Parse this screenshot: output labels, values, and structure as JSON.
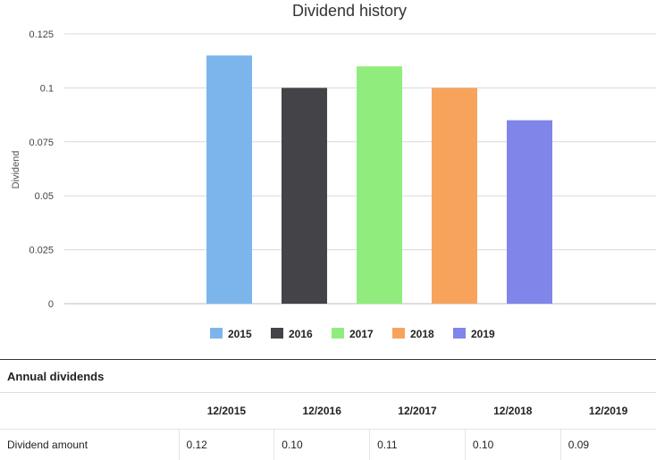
{
  "chart_data": {
    "type": "bar",
    "title": "Dividend history",
    "ylabel": "Dividend",
    "xlabel": "",
    "ylim": [
      0,
      0.125
    ],
    "yticks": [
      "0",
      "0.025",
      "0.05",
      "0.075",
      "0.1",
      "0.125"
    ],
    "grid": true,
    "legend_position": "bottom",
    "categories": [
      "2015",
      "2016",
      "2017",
      "2018",
      "2019"
    ],
    "values": [
      0.115,
      0.1,
      0.11,
      0.1,
      0.085
    ],
    "colors": [
      "#7cb5ec",
      "#434348",
      "#90ed7d",
      "#f7a35c",
      "#8085e9"
    ]
  },
  "table": {
    "title": "Annual dividends",
    "columns": [
      "12/2015",
      "12/2016",
      "12/2017",
      "12/2018",
      "12/2019"
    ],
    "row_label": "Dividend amount",
    "values": [
      "0.12",
      "0.10",
      "0.11",
      "0.10",
      "0.09"
    ]
  }
}
